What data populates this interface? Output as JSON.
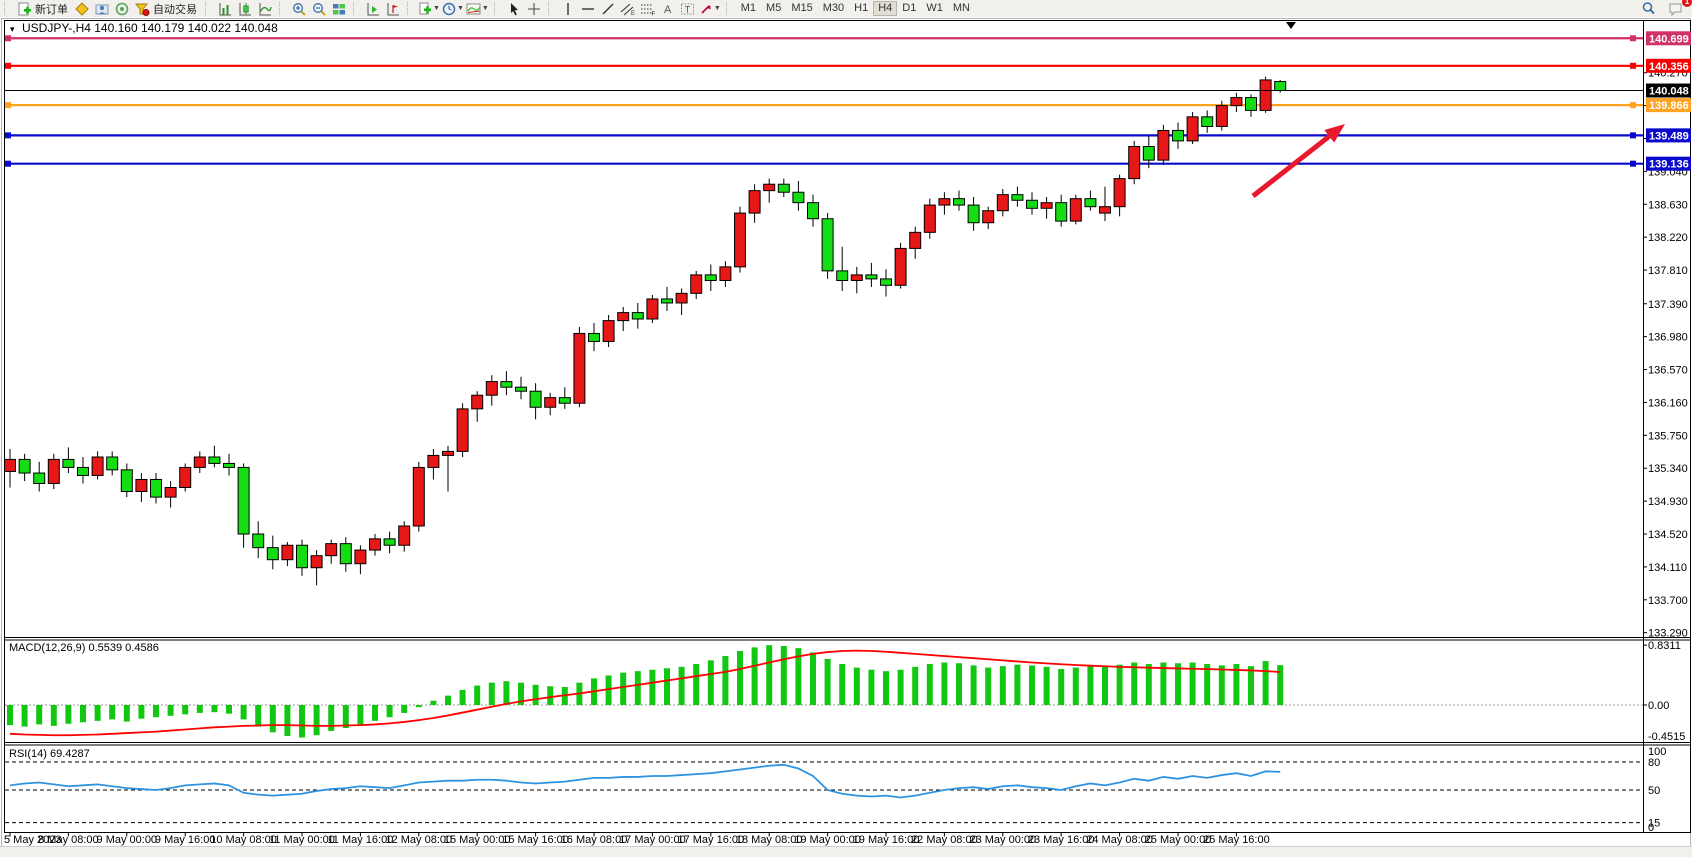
{
  "toolbar": {
    "new_order_label": "新订单",
    "auto_trading_label": "自动交易",
    "timeframes": [
      "M1",
      "M5",
      "M15",
      "M30",
      "H1",
      "H4",
      "D1",
      "W1",
      "MN"
    ],
    "active_timeframe": "H4",
    "notification_badge": "1",
    "channel_letter": "E",
    "fibo_letter": "F",
    "text_letter": "A",
    "label_letter": "T"
  },
  "chart_data": {
    "type": "candlestick",
    "symbol_header": "USDJPY-,H4  140.160 140.179 140.022 140.048",
    "ohlc_current": {
      "open": 140.16,
      "high": 140.179,
      "low": 140.022,
      "close": 140.048
    },
    "bull_color": "#e81717",
    "bear_color": "#14dd14",
    "price_axis": {
      "ticks": [
        "140.270",
        "139.860",
        "139.450",
        "139.040",
        "138.630",
        "138.220",
        "137.810",
        "137.390",
        "136.980",
        "136.570",
        "136.160",
        "135.750",
        "135.340",
        "134.930",
        "134.520",
        "134.110",
        "133.700",
        "133.290"
      ],
      "min": 133.29,
      "max": 140.27
    },
    "hlines": [
      {
        "price": 140.699,
        "label": "140.699",
        "color": "#cf3366"
      },
      {
        "price": 140.356,
        "label": "140.356",
        "color": "#f80000"
      },
      {
        "price": 139.866,
        "label": "139.866",
        "color": "#ffa320"
      },
      {
        "price": 139.489,
        "label": "139.489",
        "color": "#0a0acc"
      },
      {
        "price": 139.136,
        "label": "139.136",
        "color": "#0a0acc"
      }
    ],
    "current_price": {
      "value": 140.048,
      "label": "140.048",
      "color": "#000000"
    },
    "time_labels": [
      "5 May 2023",
      "8 May 08:00",
      "9 May 00:00",
      "9 May 16:00",
      "10 May 08:00",
      "11 May 00:00",
      "11 May 16:00",
      "12 May 08:00",
      "15 May 00:00",
      "15 May 16:00",
      "16 May 08:00",
      "17 May 00:00",
      "17 May 16:00",
      "18 May 08:00",
      "19 May 00:00",
      "19 May 16:00",
      "22 May 08:00",
      "23 May 00:00",
      "23 May 16:00",
      "24 May 08:00",
      "25 May 00:00",
      "25 May 16:00"
    ],
    "candles": [
      [
        135.3,
        135.58,
        135.1,
        135.45
      ],
      [
        135.45,
        135.52,
        135.18,
        135.28
      ],
      [
        135.28,
        135.42,
        135.05,
        135.15
      ],
      [
        135.15,
        135.52,
        135.08,
        135.45
      ],
      [
        135.45,
        135.6,
        135.28,
        135.35
      ],
      [
        135.35,
        135.48,
        135.15,
        135.25
      ],
      [
        135.25,
        135.55,
        135.2,
        135.48
      ],
      [
        135.48,
        135.55,
        135.25,
        135.32
      ],
      [
        135.32,
        135.4,
        134.98,
        135.05
      ],
      [
        135.05,
        135.28,
        134.92,
        135.2
      ],
      [
        135.2,
        135.28,
        134.9,
        134.98
      ],
      [
        134.98,
        135.18,
        134.85,
        135.1
      ],
      [
        135.1,
        135.4,
        135.05,
        135.35
      ],
      [
        135.35,
        135.55,
        135.28,
        135.48
      ],
      [
        135.48,
        135.62,
        135.35,
        135.4
      ],
      [
        135.4,
        135.52,
        135.25,
        135.35
      ],
      [
        135.35,
        135.4,
        134.35,
        134.52
      ],
      [
        134.52,
        134.68,
        134.22,
        134.35
      ],
      [
        134.35,
        134.5,
        134.08,
        134.2
      ],
      [
        134.2,
        134.42,
        134.12,
        134.38
      ],
      [
        134.38,
        134.45,
        134.0,
        134.1
      ],
      [
        134.1,
        134.32,
        133.88,
        134.25
      ],
      [
        134.25,
        134.45,
        134.15,
        134.4
      ],
      [
        134.4,
        134.48,
        134.05,
        134.15
      ],
      [
        134.15,
        134.38,
        134.02,
        134.32
      ],
      [
        134.32,
        134.52,
        134.25,
        134.46
      ],
      [
        134.46,
        134.55,
        134.28,
        134.38
      ],
      [
        134.38,
        134.68,
        134.3,
        134.62
      ],
      [
        134.62,
        135.42,
        134.55,
        135.35
      ],
      [
        135.35,
        135.58,
        135.2,
        135.5
      ],
      [
        135.5,
        135.62,
        135.05,
        135.55
      ],
      [
        135.55,
        136.15,
        135.48,
        136.08
      ],
      [
        136.08,
        136.3,
        135.92,
        136.25
      ],
      [
        136.25,
        136.5,
        136.12,
        136.42
      ],
      [
        136.42,
        136.55,
        136.25,
        136.35
      ],
      [
        136.35,
        136.48,
        136.2,
        136.3
      ],
      [
        136.3,
        136.4,
        135.95,
        136.1
      ],
      [
        136.1,
        136.28,
        136.0,
        136.22
      ],
      [
        136.22,
        136.35,
        136.08,
        136.15
      ],
      [
        136.15,
        137.1,
        136.1,
        137.02
      ],
      [
        137.02,
        137.15,
        136.8,
        136.92
      ],
      [
        136.92,
        137.25,
        136.85,
        137.18
      ],
      [
        137.18,
        137.35,
        137.05,
        137.28
      ],
      [
        137.28,
        137.4,
        137.08,
        137.2
      ],
      [
        137.2,
        137.5,
        137.15,
        137.45
      ],
      [
        137.45,
        137.6,
        137.3,
        137.4
      ],
      [
        137.4,
        137.58,
        137.25,
        137.52
      ],
      [
        137.52,
        137.8,
        137.45,
        137.75
      ],
      [
        137.75,
        137.88,
        137.55,
        137.68
      ],
      [
        137.68,
        137.92,
        137.6,
        137.85
      ],
      [
        137.85,
        138.6,
        137.78,
        138.52
      ],
      [
        138.52,
        138.88,
        138.4,
        138.8
      ],
      [
        138.8,
        138.95,
        138.65,
        138.88
      ],
      [
        138.88,
        138.95,
        138.72,
        138.78
      ],
      [
        138.78,
        138.92,
        138.55,
        138.65
      ],
      [
        138.65,
        138.75,
        138.35,
        138.45
      ],
      [
        138.45,
        138.52,
        137.7,
        137.8
      ],
      [
        137.8,
        138.1,
        137.55,
        137.68
      ],
      [
        137.68,
        137.85,
        137.52,
        137.75
      ],
      [
        137.75,
        137.9,
        137.6,
        137.7
      ],
      [
        137.7,
        137.82,
        137.48,
        137.62
      ],
      [
        137.62,
        138.15,
        137.58,
        138.08
      ],
      [
        138.08,
        138.35,
        137.95,
        138.28
      ],
      [
        138.28,
        138.7,
        138.2,
        138.62
      ],
      [
        138.62,
        138.78,
        138.5,
        138.7
      ],
      [
        138.7,
        138.8,
        138.55,
        138.62
      ],
      [
        138.62,
        138.72,
        138.3,
        138.4
      ],
      [
        138.4,
        138.6,
        138.32,
        138.55
      ],
      [
        138.55,
        138.82,
        138.48,
        138.75
      ],
      [
        138.75,
        138.85,
        138.6,
        138.68
      ],
      [
        138.68,
        138.78,
        138.5,
        138.58
      ],
      [
        138.58,
        138.72,
        138.45,
        138.65
      ],
      [
        138.65,
        138.75,
        138.35,
        138.42
      ],
      [
        138.42,
        138.75,
        138.38,
        138.7
      ],
      [
        138.7,
        138.8,
        138.55,
        138.6
      ],
      [
        138.52,
        138.85,
        138.42,
        138.6
      ],
      [
        138.6,
        139.0,
        138.48,
        138.95
      ],
      [
        138.95,
        139.42,
        138.88,
        139.35
      ],
      [
        139.35,
        139.48,
        139.08,
        139.18
      ],
      [
        139.18,
        139.62,
        139.12,
        139.55
      ],
      [
        139.55,
        139.65,
        139.32,
        139.42
      ],
      [
        139.42,
        139.78,
        139.38,
        139.72
      ],
      [
        139.72,
        139.8,
        139.52,
        139.6
      ],
      [
        139.6,
        139.92,
        139.55,
        139.86
      ],
      [
        139.86,
        140.02,
        139.78,
        139.96
      ],
      [
        139.96,
        140.0,
        139.72,
        139.8
      ],
      [
        139.8,
        140.22,
        139.77,
        140.18
      ],
      [
        140.16,
        140.179,
        140.022,
        140.048
      ]
    ],
    "macd": {
      "label": "MACD(12,26,9) 0.5539 0.4586",
      "max_label": "0.8311",
      "zero_label": "0.00",
      "min_label": "-0.4515",
      "hist_color": "#12c712",
      "signal_color": "#ff0000",
      "hist": [
        -0.28,
        -0.3,
        -0.27,
        -0.29,
        -0.26,
        -0.24,
        -0.22,
        -0.2,
        -0.23,
        -0.19,
        -0.17,
        -0.15,
        -0.13,
        -0.11,
        -0.1,
        -0.12,
        -0.2,
        -0.3,
        -0.38,
        -0.43,
        -0.4515,
        -0.42,
        -0.36,
        -0.32,
        -0.27,
        -0.22,
        -0.17,
        -0.11,
        -0.03,
        0.06,
        0.13,
        0.21,
        0.27,
        0.31,
        0.33,
        0.31,
        0.28,
        0.26,
        0.25,
        0.31,
        0.37,
        0.41,
        0.45,
        0.47,
        0.49,
        0.51,
        0.53,
        0.57,
        0.62,
        0.68,
        0.75,
        0.8,
        0.8311,
        0.82,
        0.79,
        0.73,
        0.64,
        0.57,
        0.52,
        0.49,
        0.47,
        0.49,
        0.53,
        0.57,
        0.59,
        0.58,
        0.55,
        0.52,
        0.54,
        0.56,
        0.55,
        0.53,
        0.5,
        0.52,
        0.55,
        0.53,
        0.56,
        0.59,
        0.57,
        0.59,
        0.58,
        0.59,
        0.57,
        0.55,
        0.57,
        0.54,
        0.61,
        0.5539
      ],
      "signal": [
        -0.4,
        -0.41,
        -0.415,
        -0.42,
        -0.42,
        -0.415,
        -0.41,
        -0.4,
        -0.39,
        -0.38,
        -0.37,
        -0.355,
        -0.34,
        -0.325,
        -0.31,
        -0.3,
        -0.29,
        -0.285,
        -0.28,
        -0.28,
        -0.285,
        -0.29,
        -0.29,
        -0.285,
        -0.28,
        -0.27,
        -0.255,
        -0.235,
        -0.21,
        -0.18,
        -0.145,
        -0.105,
        -0.065,
        -0.025,
        0.015,
        0.05,
        0.08,
        0.11,
        0.135,
        0.16,
        0.19,
        0.22,
        0.25,
        0.28,
        0.31,
        0.34,
        0.37,
        0.4,
        0.43,
        0.46,
        0.5,
        0.545,
        0.59,
        0.635,
        0.675,
        0.71,
        0.735,
        0.75,
        0.755,
        0.75,
        0.74,
        0.725,
        0.71,
        0.695,
        0.68,
        0.665,
        0.65,
        0.635,
        0.62,
        0.605,
        0.59,
        0.578,
        0.566,
        0.556,
        0.546,
        0.538,
        0.53,
        0.524,
        0.518,
        0.513,
        0.508,
        0.503,
        0.498,
        0.493,
        0.487,
        0.48,
        0.47,
        0.4586
      ]
    },
    "rsi": {
      "label": "RSI(14) 69.4287",
      "top_label": "100",
      "bottom_label": "0",
      "levels": [
        {
          "value": 80,
          "label": "80"
        },
        {
          "value": 50,
          "label": "50"
        },
        {
          "value": 15,
          "label": "15"
        }
      ],
      "line_color": "#2f93e0",
      "values": [
        55,
        57,
        58,
        56,
        54,
        55,
        56,
        54,
        52,
        51,
        50,
        52,
        55,
        56,
        57,
        55,
        47,
        45,
        44,
        45,
        46,
        49,
        51,
        52,
        54,
        53,
        52,
        55,
        58,
        59,
        60,
        60,
        61,
        61,
        60,
        58,
        57,
        58,
        59,
        61,
        63,
        63,
        64,
        64,
        65,
        65,
        66,
        67,
        68,
        70,
        72,
        74,
        76,
        77,
        73,
        65,
        50,
        46,
        44,
        43,
        44,
        42,
        44,
        47,
        50,
        52,
        53,
        51,
        54,
        55,
        53,
        52,
        50,
        54,
        57,
        55,
        58,
        62,
        60,
        64,
        62,
        65,
        63,
        66,
        68,
        65,
        70,
        69.43
      ]
    },
    "arrow": {
      "from": [
        1253,
        196
      ],
      "to": [
        1345,
        124
      ],
      "color": "#e8192c"
    }
  }
}
